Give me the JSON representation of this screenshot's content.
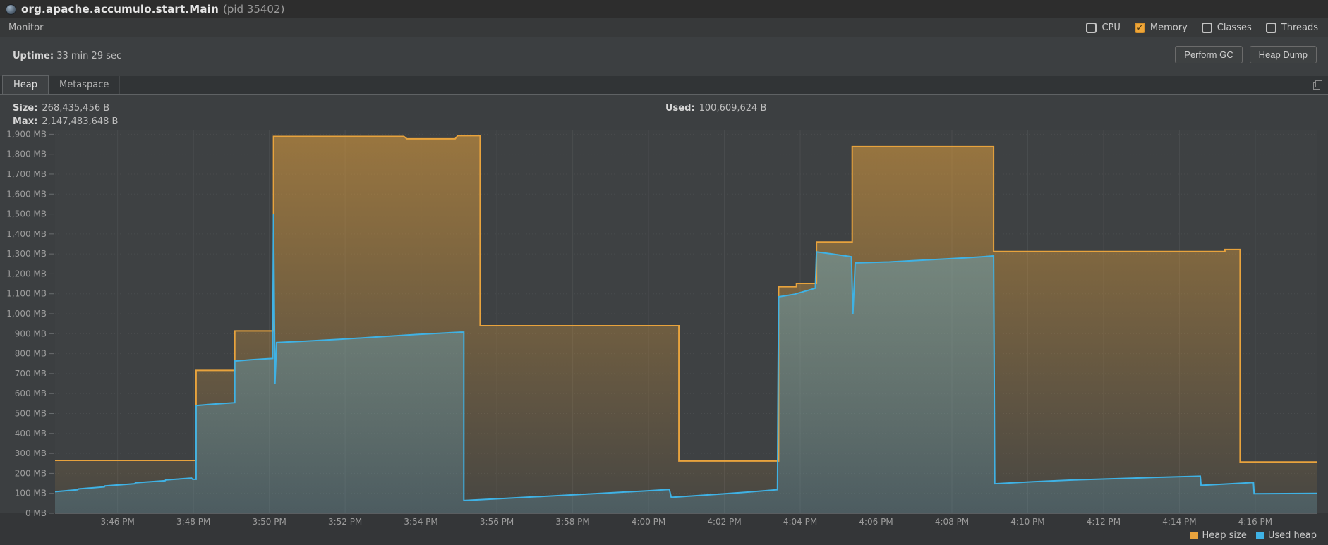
{
  "window": {
    "title": "org.apache.accumulo.start.Main",
    "pid_suffix": "(pid 35402)"
  },
  "monitor_bar": {
    "label": "Monitor",
    "checkboxes": [
      {
        "label": "CPU",
        "checked": false
      },
      {
        "label": "Memory",
        "checked": true
      },
      {
        "label": "Classes",
        "checked": false
      },
      {
        "label": "Threads",
        "checked": false
      }
    ]
  },
  "status_row": {
    "uptime_label": "Uptime:",
    "uptime_value": "33 min 29 sec",
    "buttons": [
      "Perform GC",
      "Heap Dump"
    ]
  },
  "tabs": [
    {
      "label": "Heap",
      "active": true
    },
    {
      "label": "Metaspace",
      "active": false
    }
  ],
  "heap_stats": {
    "size_label": "Size:",
    "size_value": "268,435,456 B",
    "max_label": "Max:",
    "max_value": "2,147,483,648 B",
    "used_label": "Used:",
    "used_value": "100,609,624 B"
  },
  "colors": {
    "heap_size": "#e8a33d",
    "used_heap": "#3fb2e5",
    "checkbox_checked": "#efa638",
    "grid": "#494c4e",
    "axis_text": "#9c9c9c"
  },
  "chart_data": {
    "type": "area",
    "unit": "MB",
    "title": "",
    "x_axis": {
      "labels": [
        "3:46 PM",
        "3:48 PM",
        "3:50 PM",
        "3:52 PM",
        "3:54 PM",
        "3:56 PM",
        "3:58 PM",
        "4:00 PM",
        "4:02 PM",
        "4:04 PM",
        "4:06 PM",
        "4:08 PM",
        "4:10 PM",
        "4:12 PM",
        "4:14 PM",
        "4:16 PM"
      ],
      "label_start_min": 1.65,
      "label_interval_min": 2,
      "end_min": 33.27
    },
    "y_axis": {
      "min": 0,
      "plot_max": 1919,
      "tick_step": 100,
      "tick_labels": [
        "0 MB",
        "100 MB",
        "200 MB",
        "300 MB",
        "400 MB",
        "500 MB",
        "600 MB",
        "700 MB",
        "800 MB",
        "900 MB",
        "1,000 MB",
        "1,100 MB",
        "1,200 MB",
        "1,300 MB",
        "1,400 MB",
        "1,500 MB",
        "1,600 MB",
        "1,700 MB",
        "1,800 MB",
        "1,900 MB"
      ]
    },
    "series": [
      {
        "name": "Heap size",
        "color": "#e8a33d",
        "points": [
          [
            0,
            265
          ],
          [
            3.72,
            265
          ],
          [
            3.72,
            716
          ],
          [
            4.74,
            716
          ],
          [
            4.74,
            914
          ],
          [
            5.76,
            914
          ],
          [
            5.76,
            1889
          ],
          [
            9.2,
            1889
          ],
          [
            9.28,
            1877
          ],
          [
            10.55,
            1877
          ],
          [
            10.62,
            1893
          ],
          [
            11.21,
            1893
          ],
          [
            11.21,
            940
          ],
          [
            16.45,
            940
          ],
          [
            16.45,
            262
          ],
          [
            19.08,
            262
          ],
          [
            19.08,
            1136
          ],
          [
            19.55,
            1136
          ],
          [
            19.55,
            1152
          ],
          [
            20.08,
            1152
          ],
          [
            20.08,
            1360
          ],
          [
            21.02,
            1360
          ],
          [
            21.02,
            1838
          ],
          [
            24.75,
            1838
          ],
          [
            24.75,
            1312
          ],
          [
            30.85,
            1312
          ],
          [
            30.85,
            1322
          ],
          [
            31.25,
            1322
          ],
          [
            31.25,
            257
          ],
          [
            33.27,
            257
          ]
        ]
      },
      {
        "name": "Used heap",
        "color": "#3fb2e5",
        "points": [
          [
            0,
            108
          ],
          [
            0.6,
            118
          ],
          [
            0.62,
            122
          ],
          [
            1.3,
            132
          ],
          [
            1.32,
            137
          ],
          [
            2.1,
            148
          ],
          [
            2.12,
            153
          ],
          [
            2.9,
            163
          ],
          [
            2.92,
            167
          ],
          [
            3.6,
            176
          ],
          [
            3.63,
            170
          ],
          [
            3.72,
            170
          ],
          [
            3.72,
            540
          ],
          [
            4.1,
            546
          ],
          [
            4.4,
            550
          ],
          [
            4.74,
            554
          ],
          [
            4.74,
            763
          ],
          [
            5.2,
            770
          ],
          [
            5.74,
            776
          ],
          [
            5.76,
            1500
          ],
          [
            5.8,
            650
          ],
          [
            5.84,
            856
          ],
          [
            6.5,
            862
          ],
          [
            7.5,
            872
          ],
          [
            8.5,
            884
          ],
          [
            9.5,
            896
          ],
          [
            10.7,
            908
          ],
          [
            10.78,
            908
          ],
          [
            10.78,
            64
          ],
          [
            11.6,
            72
          ],
          [
            12.6,
            82
          ],
          [
            13.6,
            92
          ],
          [
            14.6,
            102
          ],
          [
            15.6,
            112
          ],
          [
            16.2,
            119
          ],
          [
            16.25,
            80
          ],
          [
            17.2,
            92
          ],
          [
            18.2,
            105
          ],
          [
            19.05,
            118
          ],
          [
            19.08,
            1085
          ],
          [
            19.5,
            1098
          ],
          [
            20.05,
            1128
          ],
          [
            20.08,
            1310
          ],
          [
            20.5,
            1300
          ],
          [
            21.0,
            1286
          ],
          [
            21.04,
            1000
          ],
          [
            21.1,
            1255
          ],
          [
            22.0,
            1260
          ],
          [
            23.0,
            1270
          ],
          [
            24.0,
            1280
          ],
          [
            24.75,
            1290
          ],
          [
            24.78,
            148
          ],
          [
            25.8,
            158
          ],
          [
            27.0,
            168
          ],
          [
            28.4,
            176
          ],
          [
            29.0,
            180
          ],
          [
            30.2,
            186
          ],
          [
            30.22,
            140
          ],
          [
            31.0,
            148
          ],
          [
            31.6,
            154
          ],
          [
            31.62,
            98
          ],
          [
            33.27,
            100
          ]
        ]
      }
    ],
    "legend": {
      "position": "bottom-right",
      "entries": [
        "Heap size",
        "Used heap"
      ]
    }
  }
}
